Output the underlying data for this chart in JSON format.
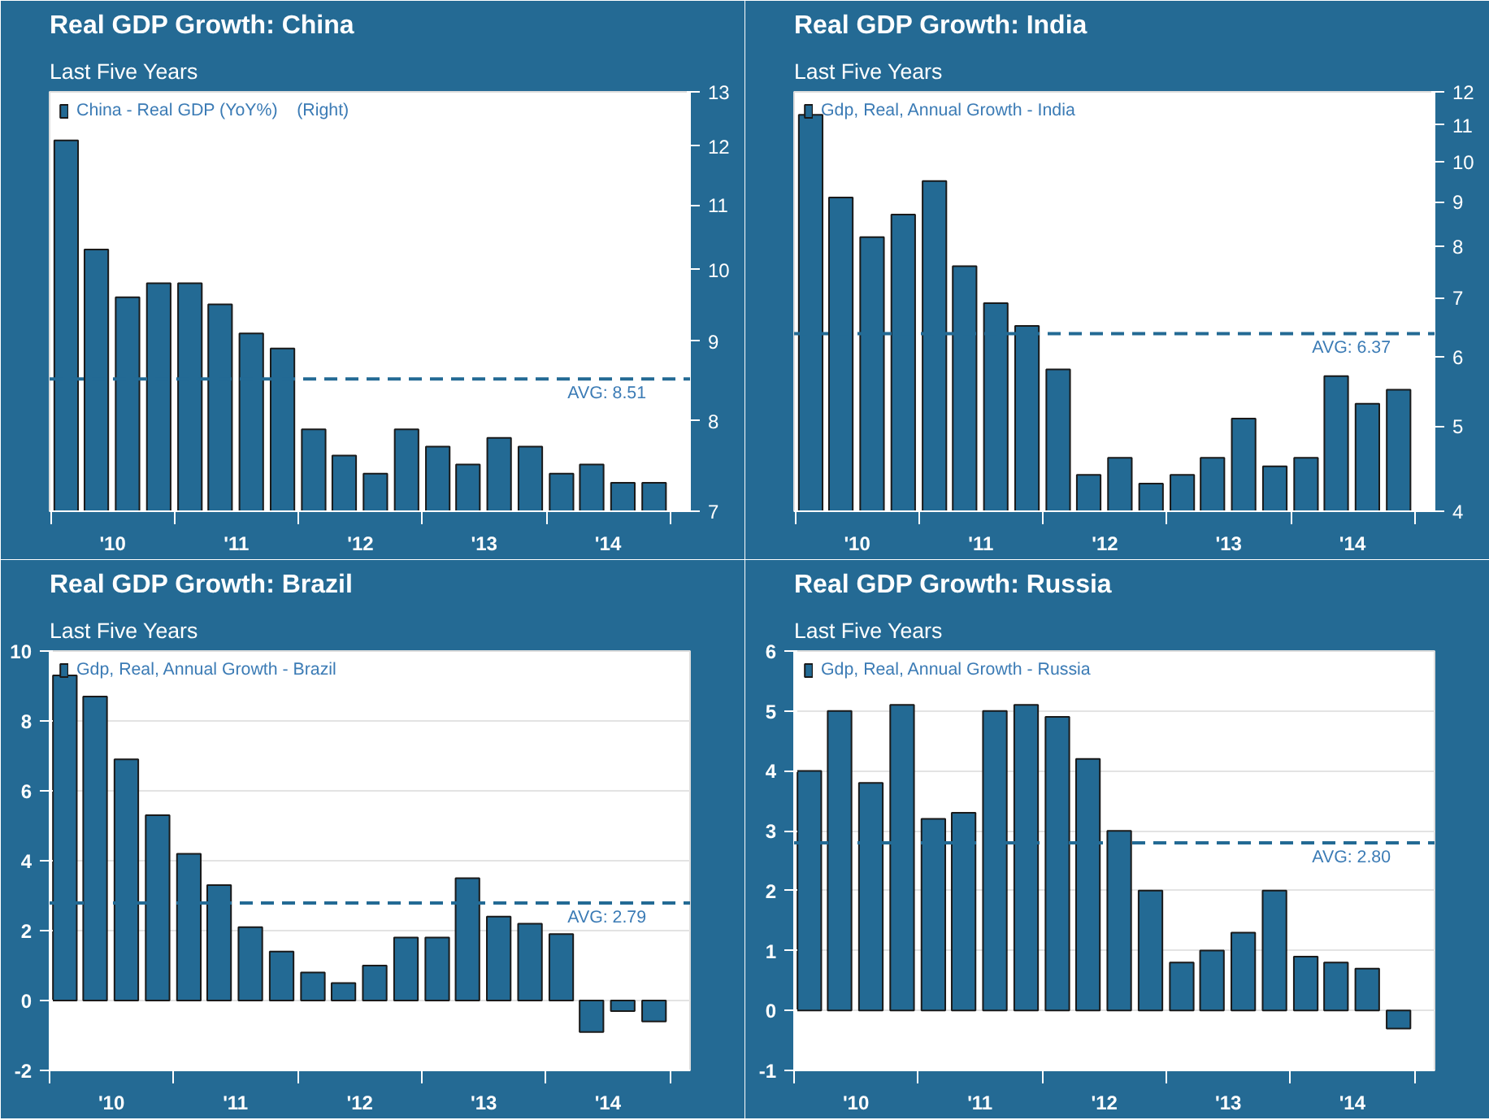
{
  "chart_data": [
    {
      "type": "bar",
      "title": "Real GDP Growth: China",
      "subtitle": "Last Five Years",
      "x": [
        "2010-02-15",
        "2010-05-15",
        "2010-08-15",
        "2010-11-15",
        "2011-02-15",
        "2011-05-15",
        "2011-08-15",
        "2011-11-15",
        "2012-02-15",
        "2012-05-15",
        "2012-08-15",
        "2012-11-15",
        "2013-02-15",
        "2013-05-15",
        "2013-08-15",
        "2013-11-15",
        "2014-02-15",
        "2014-05-15",
        "2014-08-15",
        "2014-11-15"
      ],
      "series": [
        {
          "name": "China - Real GDP (YoY%)    (Right)",
          "color": "#236a94",
          "axis": "y2",
          "values": [
            12.1,
            10.3,
            9.6,
            9.8,
            9.8,
            9.5,
            9.1,
            8.9,
            7.9,
            7.6,
            7.4,
            7.9,
            7.7,
            7.5,
            7.8,
            7.7,
            7.4,
            7.5,
            7.3,
            7.3
          ]
        }
      ],
      "xlim": [
        "2009-12-28",
        "2015-03-01"
      ],
      "xticks": [
        {
          "value": "2010-01-01",
          "label": null
        },
        {
          "value": "2010-07-02",
          "label": "'10"
        },
        {
          "value": "2011-01-01",
          "label": null
        },
        {
          "value": "2011-07-02",
          "label": "'11"
        },
        {
          "value": "2012-01-01",
          "label": null
        },
        {
          "value": "2012-07-02",
          "label": "'12"
        },
        {
          "value": "2013-01-01",
          "label": null
        },
        {
          "value": "2013-07-02",
          "label": "'13"
        },
        {
          "value": "2014-01-01",
          "label": null
        },
        {
          "value": "2014-07-02",
          "label": "'14"
        },
        {
          "value": "2015-01-01",
          "label": null
        }
      ],
      "y2lim": [
        7,
        13
      ],
      "y2ticks": [
        7,
        8,
        9,
        10,
        11,
        12,
        13
      ],
      "log": "y2",
      "grid": false,
      "legend": "top left",
      "ref_lines": [
        {
          "axis": "y2",
          "value": 8.51,
          "label": "AVG:  8.51",
          "color": "#236a94",
          "line_style": "dashed"
        }
      ]
    },
    {
      "type": "bar",
      "title": "Real GDP Growth: India",
      "subtitle": "Last Five Years",
      "x": [
        "2010-02-15",
        "2010-05-15",
        "2010-08-15",
        "2010-11-15",
        "2011-02-15",
        "2011-05-15",
        "2011-08-15",
        "2011-11-15",
        "2012-02-15",
        "2012-05-15",
        "2012-08-15",
        "2012-11-15",
        "2013-02-15",
        "2013-05-15",
        "2013-08-15",
        "2013-11-15",
        "2014-02-15",
        "2014-05-15",
        "2014-08-15",
        "2014-11-15"
      ],
      "series": [
        {
          "name": "Gdp, Real, Annual Growth - India",
          "color": "#236a94",
          "axis": "y2",
          "values": [
            11.3,
            9.1,
            8.2,
            8.7,
            9.5,
            7.6,
            6.9,
            6.5,
            5.8,
            4.4,
            4.6,
            4.3,
            4.4,
            4.6,
            5.1,
            4.5,
            4.6,
            5.7,
            5.3,
            5.5
          ]
        }
      ],
      "xlim": [
        "2009-12-28",
        "2015-03-01"
      ],
      "xticks": [
        {
          "value": "2010-01-01",
          "label": null
        },
        {
          "value": "2010-07-02",
          "label": "'10"
        },
        {
          "value": "2011-01-01",
          "label": null
        },
        {
          "value": "2011-07-02",
          "label": "'11"
        },
        {
          "value": "2012-01-01",
          "label": null
        },
        {
          "value": "2012-07-02",
          "label": "'12"
        },
        {
          "value": "2013-01-01",
          "label": null
        },
        {
          "value": "2013-07-02",
          "label": "'13"
        },
        {
          "value": "2014-01-01",
          "label": null
        },
        {
          "value": "2014-07-02",
          "label": "'14"
        },
        {
          "value": "2015-01-01",
          "label": null
        }
      ],
      "y2lim": [
        4,
        12
      ],
      "y2ticks": [
        4,
        5,
        6,
        7,
        8,
        9,
        10,
        11,
        12
      ],
      "log": "y2",
      "grid": false,
      "legend": "top left",
      "ref_lines": [
        {
          "axis": "y2",
          "value": 6.37,
          "label": "AVG:  6.37",
          "color": "#236a94",
          "line_style": "dashed"
        }
      ]
    },
    {
      "type": "bar",
      "title": "Real GDP Growth: Brazil",
      "subtitle": "Last Five Years",
      "x": [
        "2010-02-15",
        "2010-05-15",
        "2010-08-15",
        "2010-11-15",
        "2011-02-15",
        "2011-05-15",
        "2011-08-15",
        "2011-11-15",
        "2012-02-15",
        "2012-05-15",
        "2012-08-15",
        "2012-11-15",
        "2013-02-15",
        "2013-05-15",
        "2013-08-15",
        "2013-11-15",
        "2014-02-15",
        "2014-05-15",
        "2014-08-15",
        "2014-11-15"
      ],
      "series": [
        {
          "name": "Gdp, Real, Annual Growth - Brazil",
          "color": "#236a94",
          "values": [
            9.3,
            8.7,
            6.9,
            5.3,
            4.2,
            3.3,
            2.1,
            1.4,
            0.8,
            0.5,
            1.0,
            1.8,
            1.8,
            3.5,
            2.4,
            2.2,
            1.9,
            -0.9,
            -0.3,
            -0.6
          ]
        }
      ],
      "xlim": [
        "2010-01-01",
        "2015-03-01"
      ],
      "xticks": [
        {
          "value": "2010-01-01",
          "label": null
        },
        {
          "value": "2010-07-02",
          "label": "'10"
        },
        {
          "value": "2011-01-01",
          "label": null
        },
        {
          "value": "2011-07-02",
          "label": "'11"
        },
        {
          "value": "2012-01-01",
          "label": null
        },
        {
          "value": "2012-07-02",
          "label": "'12"
        },
        {
          "value": "2013-01-01",
          "label": null
        },
        {
          "value": "2013-07-02",
          "label": "'13"
        },
        {
          "value": "2014-01-01",
          "label": null
        },
        {
          "value": "2014-07-02",
          "label": "'14"
        },
        {
          "value": "2015-01-01",
          "label": null
        }
      ],
      "ylim": [
        -2,
        10
      ],
      "yticks": [
        -2,
        0,
        2,
        4,
        6,
        8,
        10
      ],
      "grid": "y",
      "legend": "top left",
      "ref_lines": [
        {
          "axis": "y",
          "value": 2.79,
          "label": "AVG:  2.79",
          "color": "#236a94",
          "line_style": "dashed"
        }
      ]
    },
    {
      "type": "bar",
      "title": "Real GDP Growth: Russia",
      "subtitle": "Last Five Years",
      "x": [
        "2010-02-15",
        "2010-05-15",
        "2010-08-15",
        "2010-11-15",
        "2011-02-15",
        "2011-05-15",
        "2011-08-15",
        "2011-11-15",
        "2012-02-15",
        "2012-05-15",
        "2012-08-15",
        "2012-11-15",
        "2013-02-15",
        "2013-05-15",
        "2013-08-15",
        "2013-11-15",
        "2014-02-15",
        "2014-05-15",
        "2014-08-15",
        "2014-11-15"
      ],
      "series": [
        {
          "name": "Gdp, Real, Annual Growth - Russia",
          "color": "#236a94",
          "values": [
            4.0,
            5.0,
            3.8,
            5.1,
            3.2,
            3.3,
            5.0,
            5.1,
            4.9,
            4.2,
            3.0,
            2.0,
            0.8,
            1.0,
            1.3,
            2.0,
            0.9,
            0.8,
            0.7,
            -0.3
          ]
        }
      ],
      "xlim": [
        "2010-01-01",
        "2015-03-01"
      ],
      "xticks": [
        {
          "value": "2010-01-01",
          "label": null
        },
        {
          "value": "2010-07-02",
          "label": "'10"
        },
        {
          "value": "2011-01-01",
          "label": null
        },
        {
          "value": "2011-07-02",
          "label": "'11"
        },
        {
          "value": "2012-01-01",
          "label": null
        },
        {
          "value": "2012-07-02",
          "label": "'12"
        },
        {
          "value": "2013-01-01",
          "label": null
        },
        {
          "value": "2013-07-02",
          "label": "'13"
        },
        {
          "value": "2014-01-01",
          "label": null
        },
        {
          "value": "2014-07-02",
          "label": "'14"
        },
        {
          "value": "2015-01-01",
          "label": null
        }
      ],
      "ylim": [
        -1,
        6
      ],
      "yticks": [
        -1,
        0,
        1,
        2,
        3,
        4,
        5,
        6
      ],
      "grid": "y",
      "legend": "top left",
      "ref_lines": [
        {
          "axis": "y",
          "value": 2.8,
          "label": "AVG:  2.80",
          "color": "#236a94",
          "line_style": "dashed"
        }
      ]
    }
  ]
}
